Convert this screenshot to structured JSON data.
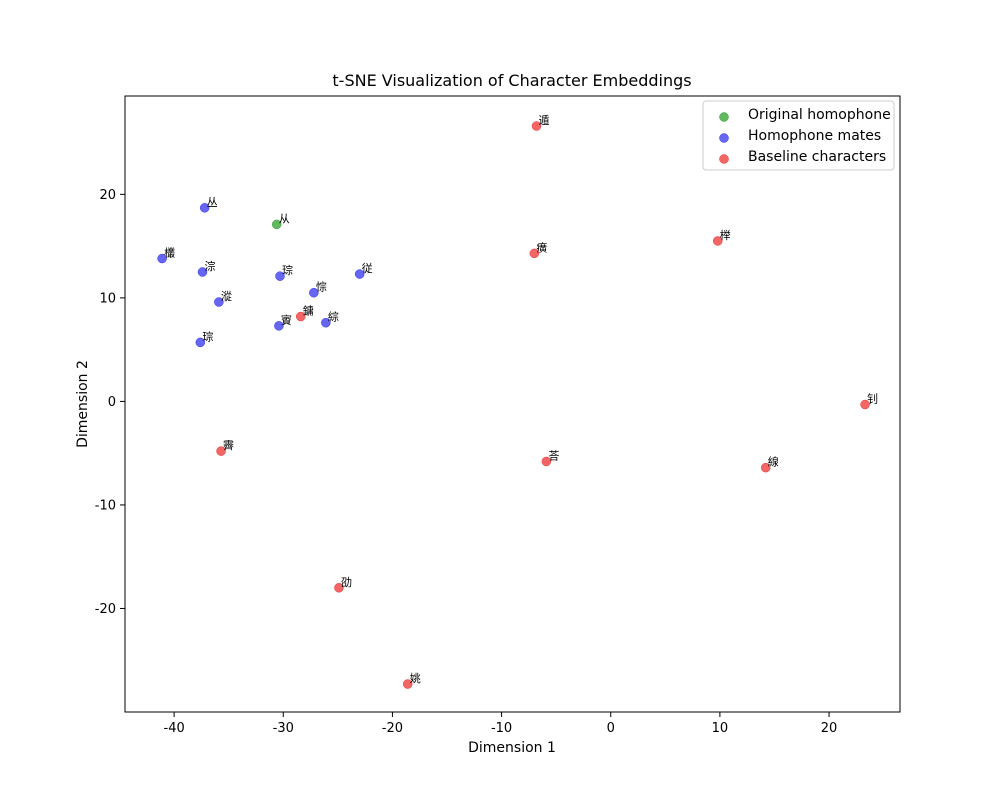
{
  "chart_data": {
    "type": "scatter",
    "title": "t-SNE Visualization of Character Embeddings",
    "xlabel": "Dimension 1",
    "ylabel": "Dimension 2",
    "xlim": [
      -44.5,
      26.5
    ],
    "ylim": [
      -30.0,
      29.5
    ],
    "x_ticks": [
      -40,
      -30,
      -20,
      -10,
      0,
      10,
      20
    ],
    "y_ticks": [
      -20,
      -10,
      0,
      10,
      20
    ],
    "x_tick_labels": [
      "-40",
      "-30",
      "-20",
      "-10",
      "0",
      "10",
      "20"
    ],
    "y_tick_labels": [
      "-20",
      "-10",
      "0",
      "10",
      "20"
    ],
    "grid": false,
    "legend_position": "top-right",
    "series": [
      {
        "name": "Original homophone",
        "color": "#2ca02c",
        "points": [
          {
            "x": -30.6,
            "y": 17.1,
            "label": "从"
          }
        ]
      },
      {
        "name": "Homophone mates",
        "color": "#3333ee",
        "points": [
          {
            "x": -37.2,
            "y": 18.7,
            "label": "丛"
          },
          {
            "x": -41.1,
            "y": 13.8,
            "label": "欉"
          },
          {
            "x": -37.4,
            "y": 12.5,
            "label": "淙"
          },
          {
            "x": -30.3,
            "y": 12.1,
            "label": "琮"
          },
          {
            "x": -23.0,
            "y": 12.3,
            "label": "従"
          },
          {
            "x": -27.2,
            "y": 10.5,
            "label": "悰"
          },
          {
            "x": -35.9,
            "y": 9.6,
            "label": "漎"
          },
          {
            "x": -30.4,
            "y": 7.3,
            "label": "賨"
          },
          {
            "x": -26.1,
            "y": 7.6,
            "label": "綜"
          },
          {
            "x": -37.6,
            "y": 5.7,
            "label": "琮"
          }
        ]
      },
      {
        "name": "Baseline characters",
        "color": "#ee3333",
        "points": [
          {
            "x": -6.8,
            "y": 26.6,
            "label": "遁"
          },
          {
            "x": -7.0,
            "y": 14.3,
            "label": "癀"
          },
          {
            "x": 9.8,
            "y": 15.5,
            "label": "榉"
          },
          {
            "x": -28.4,
            "y": 8.2,
            "label": "鏞"
          },
          {
            "x": 23.3,
            "y": -0.3,
            "label": "钊"
          },
          {
            "x": -35.7,
            "y": -4.8,
            "label": "霽"
          },
          {
            "x": -5.9,
            "y": -5.8,
            "label": "荅"
          },
          {
            "x": 14.2,
            "y": -6.4,
            "label": "線"
          },
          {
            "x": -24.9,
            "y": -18.0,
            "label": "劭"
          },
          {
            "x": -18.6,
            "y": -27.3,
            "label": "姚"
          }
        ]
      }
    ]
  }
}
